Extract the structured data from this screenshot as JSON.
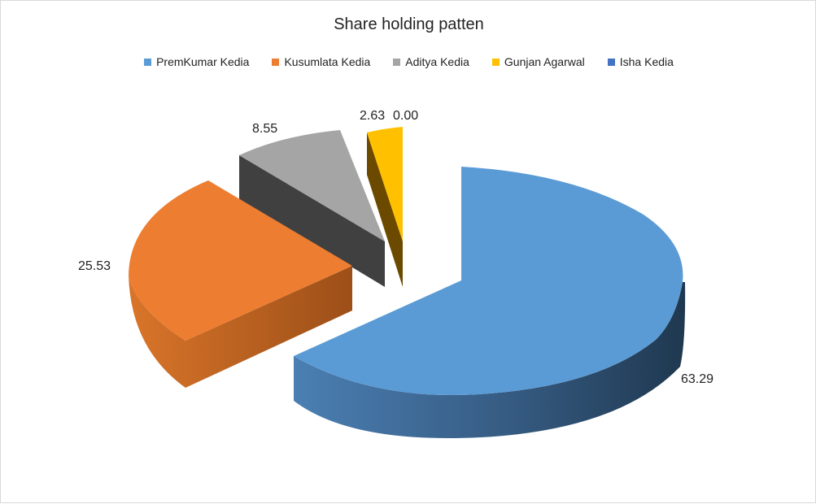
{
  "chart_data": {
    "type": "pie",
    "title": "Share holding patten",
    "legend_position": "top",
    "series": [
      {
        "name": "PremKumar Kedia",
        "value": 63.29,
        "label": "63.29",
        "color": "#5b9bd5"
      },
      {
        "name": "Kusumlata Kedia",
        "value": 25.53,
        "label": "25.53",
        "color": "#ed7d31"
      },
      {
        "name": "Aditya Kedia",
        "value": 8.55,
        "label": "8.55",
        "color": "#a5a5a5"
      },
      {
        "name": "Gunjan Agarwal",
        "value": 2.63,
        "label": "2.63",
        "color": "#ffc000"
      },
      {
        "name": "Isha Kedia",
        "value": 0.0,
        "label": "0.00",
        "color": "#4472c4"
      }
    ]
  }
}
